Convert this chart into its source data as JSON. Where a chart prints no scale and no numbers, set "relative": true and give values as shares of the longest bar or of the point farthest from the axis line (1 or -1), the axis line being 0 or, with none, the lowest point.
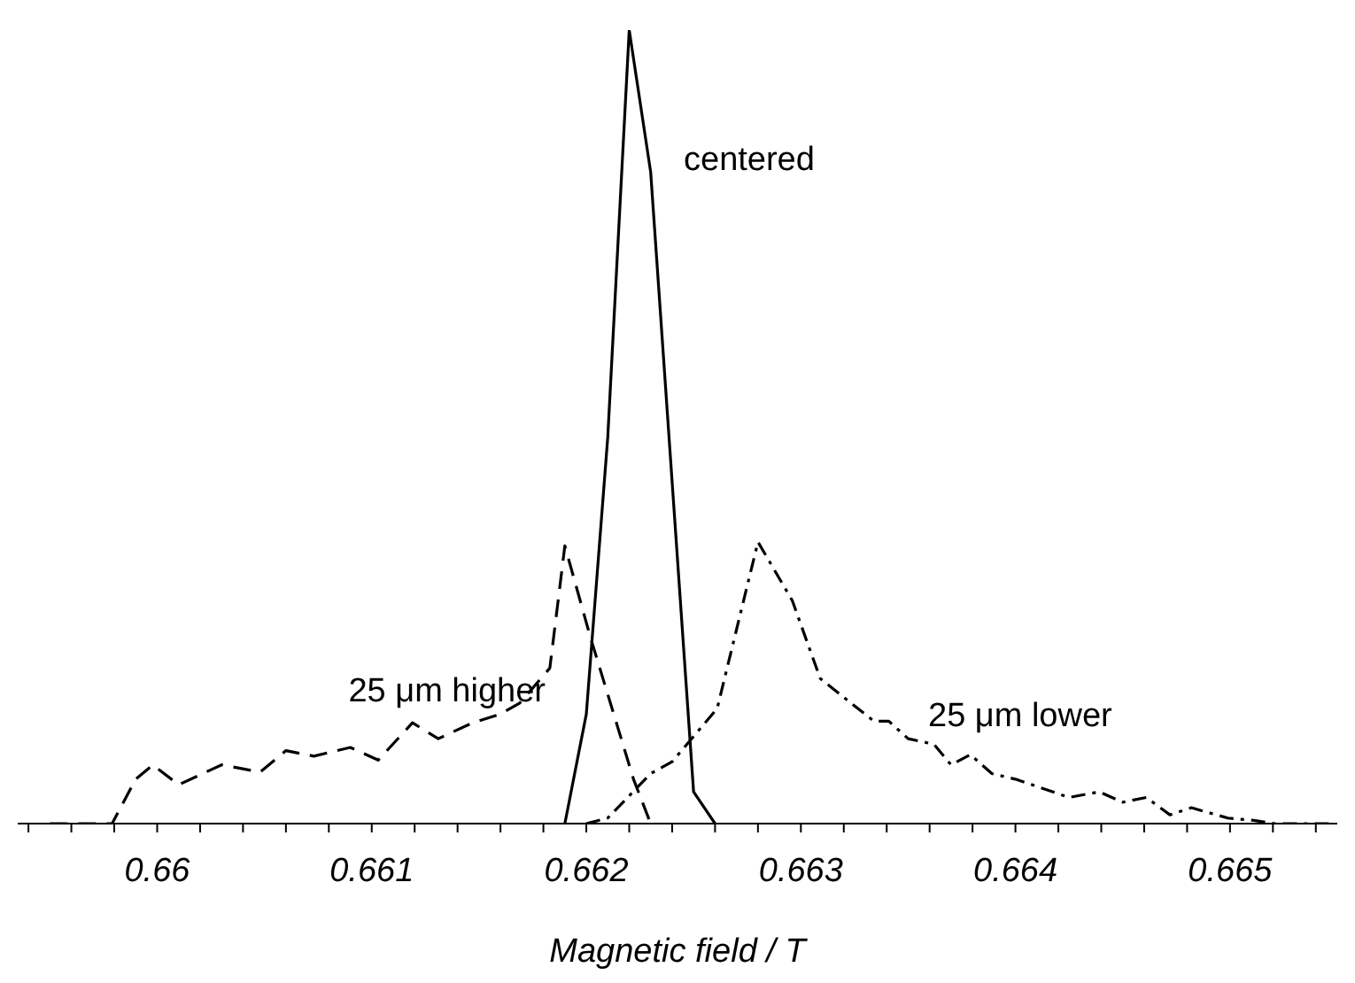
{
  "chart_data": {
    "type": "line",
    "xlabel": "Magnetic field / T",
    "relative": true,
    "marker": "none",
    "xlim": [
      0.65935,
      0.6655
    ],
    "xticks": [
      {
        "value": 0.6594,
        "label": null
      },
      {
        "value": 0.6596,
        "label": null
      },
      {
        "value": 0.6598,
        "label": null
      },
      {
        "value": 0.66,
        "label": "0.66"
      },
      {
        "value": 0.6602,
        "label": null
      },
      {
        "value": 0.6604,
        "label": null
      },
      {
        "value": 0.6606,
        "label": null
      },
      {
        "value": 0.6608,
        "label": null
      },
      {
        "value": 0.661,
        "label": "0.661"
      },
      {
        "value": 0.6612,
        "label": null
      },
      {
        "value": 0.6614,
        "label": null
      },
      {
        "value": 0.6616,
        "label": null
      },
      {
        "value": 0.6618,
        "label": null
      },
      {
        "value": 0.662,
        "label": "0.662"
      },
      {
        "value": 0.6622,
        "label": null
      },
      {
        "value": 0.6624,
        "label": null
      },
      {
        "value": 0.6626,
        "label": null
      },
      {
        "value": 0.6628,
        "label": null
      },
      {
        "value": 0.663,
        "label": "0.663"
      },
      {
        "value": 0.6632,
        "label": null
      },
      {
        "value": 0.6634,
        "label": null
      },
      {
        "value": 0.6636,
        "label": null
      },
      {
        "value": 0.6638,
        "label": null
      },
      {
        "value": 0.664,
        "label": "0.664"
      },
      {
        "value": 0.6642,
        "label": null
      },
      {
        "value": 0.6644,
        "label": null
      },
      {
        "value": 0.6646,
        "label": null
      },
      {
        "value": 0.6648,
        "label": null
      },
      {
        "value": 0.665,
        "label": "0.665"
      },
      {
        "value": 0.6652,
        "label": null
      },
      {
        "value": 0.6654,
        "label": null
      }
    ],
    "series": [
      {
        "name": "centered",
        "color": "#000000",
        "line_style": "solid",
        "x": [
          0.6619,
          0.662,
          0.6621,
          0.6622,
          0.6623,
          0.6625,
          0.6626
        ],
        "values": [
          0,
          0.138,
          0.487,
          1,
          0.821,
          0.04,
          0
        ]
      },
      {
        "name": "25 μm higher",
        "color": "#000000",
        "line_style": "dashed",
        "x": [
          0.6595,
          0.65966,
          0.65979,
          0.6599,
          0.65998,
          0.6601,
          0.6603,
          0.66048,
          0.6606,
          0.66073,
          0.6609,
          0.66103,
          0.66119,
          0.66131,
          0.66147,
          0.6616,
          0.66169,
          0.66183,
          0.6619,
          0.66202,
          0.66222,
          0.6623
        ],
        "values": [
          0,
          0,
          0,
          0.056,
          0.074,
          0.049,
          0.074,
          0.065,
          0.092,
          0.085,
          0.096,
          0.08,
          0.127,
          0.107,
          0.127,
          0.138,
          0.152,
          0.196,
          0.35,
          0.234,
          0.056,
          0
        ]
      },
      {
        "name": "25 μm lower",
        "color": "#000000",
        "line_style": "dashdot",
        "x": [
          0.662,
          0.6621,
          0.6623,
          0.6624,
          0.66261,
          0.6628,
          0.66296,
          0.66309,
          0.66334,
          0.66341,
          0.6635,
          0.66362,
          0.6637,
          0.66379,
          0.66389,
          0.664,
          0.66412,
          0.66425,
          0.66439,
          0.6645,
          0.66461,
          0.66472,
          0.66482,
          0.66499,
          0.66511,
          0.66521,
          0.6654,
          0.66549
        ],
        "values": [
          0,
          0.007,
          0.063,
          0.078,
          0.145,
          0.355,
          0.281,
          0.183,
          0.129,
          0.129,
          0.107,
          0.1,
          0.074,
          0.087,
          0.063,
          0.056,
          0.045,
          0.033,
          0.04,
          0.027,
          0.033,
          0.011,
          0.02,
          0.007,
          0.004,
          0,
          0,
          0
        ]
      }
    ]
  }
}
